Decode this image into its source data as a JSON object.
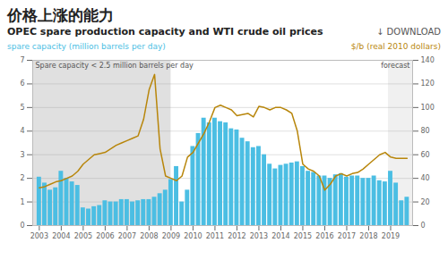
{
  "chart_data": {
    "type": "bar",
    "title": "价格上涨的能力",
    "subtitle": "OPEC spare production capacity and WTI crude oil prices",
    "ylabel": "spare capacity (million barrels per day)",
    "y2label": "$/b (real 2010 dollars)",
    "annotations": [
      "↓ DOWNLOAD"
    ],
    "shaded_regions": [
      {
        "x0": 2002.7,
        "x1": 2009.0,
        "color": "#E0E0E0",
        "label": "Spare capacity < 2.5 million barrels per day"
      },
      {
        "x0": 2018.9,
        "x1": 2020.0,
        "color": "#F0F0F0",
        "label": "forecast"
      }
    ],
    "x": [
      2003.0,
      2003.25,
      2003.5,
      2003.75,
      2004.0,
      2004.25,
      2004.5,
      2004.75,
      2005.0,
      2005.25,
      2005.5,
      2005.75,
      2006.0,
      2006.25,
      2006.5,
      2006.75,
      2007.0,
      2007.25,
      2007.5,
      2007.75,
      2008.0,
      2008.25,
      2008.5,
      2008.75,
      2009.0,
      2009.25,
      2009.5,
      2009.75,
      2010.0,
      2010.25,
      2010.5,
      2010.75,
      2011.0,
      2011.25,
      2011.5,
      2011.75,
      2012.0,
      2012.25,
      2012.5,
      2012.75,
      2013.0,
      2013.25,
      2013.5,
      2013.75,
      2014.0,
      2014.25,
      2014.5,
      2014.75,
      2015.0,
      2015.25,
      2015.5,
      2015.75,
      2016.0,
      2016.25,
      2016.5,
      2016.75,
      2017.0,
      2017.25,
      2017.5,
      2017.75,
      2018.0,
      2018.25,
      2018.5,
      2018.75,
      2019.0,
      2019.25,
      2019.5,
      2019.75
    ],
    "series": [
      {
        "type": "bar",
        "color": "#4BBEE3",
        "values": [
          2.05,
          1.8,
          1.5,
          1.6,
          2.3,
          2.0,
          1.85,
          1.7,
          0.75,
          0.7,
          0.8,
          0.85,
          1.05,
          1.0,
          1.0,
          1.1,
          1.1,
          1.0,
          1.05,
          1.1,
          1.1,
          1.2,
          1.35,
          1.5,
          1.95,
          2.5,
          1.0,
          1.5,
          3.35,
          3.9,
          4.55,
          4.35,
          4.55,
          4.4,
          4.35,
          4.1,
          4.05,
          3.7,
          3.55,
          3.3,
          3.35,
          3.0,
          2.6,
          2.4,
          2.55,
          2.6,
          2.65,
          2.7,
          2.5,
          2.3,
          2.25,
          2.1,
          2.1,
          2.0,
          2.15,
          2.2,
          2.05,
          2.1,
          2.1,
          2.0,
          2.0,
          2.1,
          1.9,
          1.85,
          2.3,
          1.8,
          1.05,
          1.2
        ]
      },
      {
        "type": "line",
        "axis": "y2",
        "color": "#B8860B",
        "values": [
          32,
          33,
          35,
          37,
          38,
          40,
          42,
          46,
          52,
          56,
          60,
          61,
          62,
          65,
          68,
          70,
          72,
          74,
          76,
          90,
          115,
          128,
          65,
          42,
          40,
          38,
          42,
          58,
          62,
          70,
          78,
          88,
          100,
          102,
          100,
          98,
          93,
          94,
          95,
          92,
          101,
          100,
          98,
          100,
          100,
          98,
          95,
          80,
          52,
          48,
          46,
          42,
          30,
          35,
          42,
          44,
          42,
          44,
          45,
          48,
          52,
          56,
          60,
          62,
          58,
          57,
          57,
          57
        ]
      }
    ],
    "xlim": [
      2002.7,
      2020.0
    ],
    "xticks": [
      2003,
      2004,
      2005,
      2006,
      2007,
      2008,
      2009,
      2010,
      2011,
      2012,
      2013,
      2014,
      2015,
      2016,
      2017,
      2018,
      2019
    ],
    "ylim": [
      0,
      7
    ],
    "yticks": [
      0,
      1,
      2,
      3,
      4,
      5,
      6,
      7
    ],
    "y2lim": [
      0,
      140
    ],
    "y2ticks": [
      0,
      20,
      40,
      60,
      80,
      100,
      120,
      140
    ],
    "grid": true
  }
}
